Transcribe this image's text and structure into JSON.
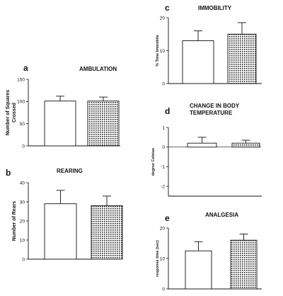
{
  "chart_data": [
    {
      "panel": "a",
      "title": "AMBULATION",
      "type": "bar",
      "categories": [
        "",
        ""
      ],
      "values": [
        101,
        101
      ],
      "errors": [
        11,
        9
      ],
      "ylabel": "Number of Squares Crossed",
      "ylim": [
        0,
        150
      ],
      "yticks": [
        0,
        50,
        100,
        150
      ],
      "fills": [
        "open",
        "stippled"
      ]
    },
    {
      "panel": "b",
      "title": "REARING",
      "type": "bar",
      "categories": [
        "",
        ""
      ],
      "values": [
        29,
        28
      ],
      "errors": [
        7,
        5
      ],
      "ylabel": "Number of Rears",
      "ylim": [
        0,
        40
      ],
      "yticks": [
        0,
        10,
        20,
        30,
        40
      ],
      "fills": [
        "open",
        "stippled"
      ]
    },
    {
      "panel": "c",
      "title": "IMMOBILITY",
      "type": "bar",
      "categories": [
        "",
        ""
      ],
      "values": [
        13,
        15
      ],
      "errors": [
        3,
        3.5
      ],
      "ylabel": "% Time Immobile",
      "ylim": [
        0,
        20
      ],
      "yticks": [
        0,
        10,
        20
      ],
      "fills": [
        "open",
        "stippled"
      ]
    },
    {
      "panel": "d",
      "title": "CHANGE IN BODY TEMPERATURE",
      "title_lines": [
        "CHANGE IN BODY",
        "TEMPERATURE"
      ],
      "type": "bar",
      "categories": [
        "",
        ""
      ],
      "values": [
        0.2,
        0.2
      ],
      "errors": [
        0.3,
        0.15
      ],
      "ylabel": "degree Celsius",
      "ylim": [
        -2.5,
        1
      ],
      "yticks": [
        -2,
        -1,
        0,
        1
      ],
      "fills": [
        "open",
        "stippled"
      ]
    },
    {
      "panel": "e",
      "title": "ANALGESIA",
      "type": "bar",
      "categories": [
        "",
        ""
      ],
      "values": [
        12.5,
        16
      ],
      "errors": [
        3,
        2
      ],
      "ylabel": "response time (sec)",
      "ylim": [
        0,
        20
      ],
      "yticks": [
        0,
        10,
        20
      ],
      "fills": [
        "open",
        "stippled"
      ]
    }
  ]
}
